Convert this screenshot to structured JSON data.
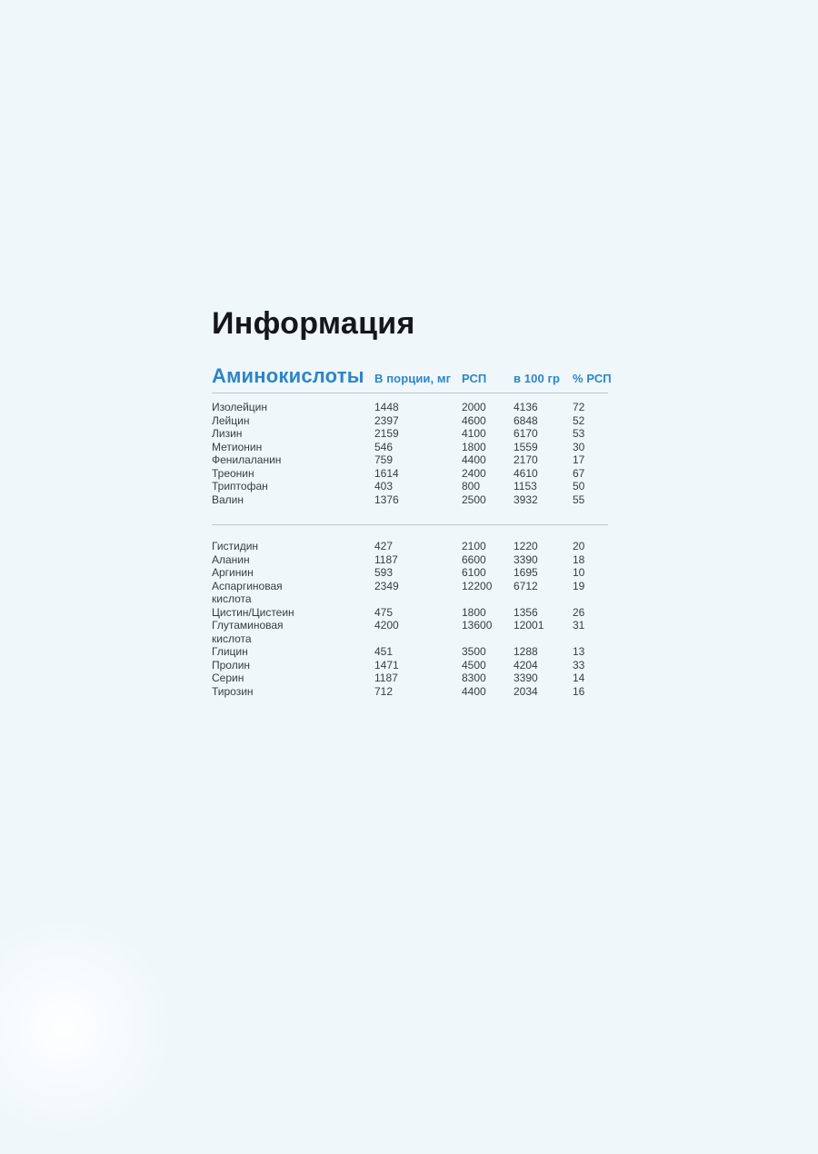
{
  "page": {
    "title": "Информация"
  },
  "table": {
    "section_title": "Аминокислоты",
    "columns": [
      "В порции, мг",
      "РСП",
      "в 100 гр",
      "% РСП"
    ],
    "groups": [
      {
        "rows": [
          {
            "name": "Изолейцин",
            "per_serving": "1448",
            "rsp": "2000",
            "per_100g": "4136",
            "pct_rsp": "72"
          },
          {
            "name": "Лейцин",
            "per_serving": "2397",
            "rsp": "4600",
            "per_100g": "6848",
            "pct_rsp": "52"
          },
          {
            "name": "Лизин",
            "per_serving": "2159",
            "rsp": "4100",
            "per_100g": "6170",
            "pct_rsp": "53"
          },
          {
            "name": "Метионин",
            "per_serving": "546",
            "rsp": "1800",
            "per_100g": "1559",
            "pct_rsp": "30"
          },
          {
            "name": "Фенилаланин",
            "per_serving": "759",
            "rsp": "4400",
            "per_100g": "2170",
            "pct_rsp": "17"
          },
          {
            "name": "Треонин",
            "per_serving": "1614",
            "rsp": "2400",
            "per_100g": "4610",
            "pct_rsp": "67"
          },
          {
            "name": "Триптофан",
            "per_serving": "403",
            "rsp": "800",
            "per_100g": "1153",
            "pct_rsp": "50"
          },
          {
            "name": "Валин",
            "per_serving": "1376",
            "rsp": "2500",
            "per_100g": "3932",
            "pct_rsp": "55"
          }
        ]
      },
      {
        "rows": [
          {
            "name": "Гистидин",
            "per_serving": "427",
            "rsp": "2100",
            "per_100g": "1220",
            "pct_rsp": "20"
          },
          {
            "name": "Аланин",
            "per_serving": "1187",
            "rsp": "6600",
            "per_100g": "3390",
            "pct_rsp": "18"
          },
          {
            "name": "Аргинин",
            "per_serving": "593",
            "rsp": "6100",
            "per_100g": "1695",
            "pct_rsp": "10"
          },
          {
            "name": "Аспаргиновая кислота",
            "per_serving": "2349",
            "rsp": "12200",
            "per_100g": "6712",
            "pct_rsp": "19"
          },
          {
            "name": "Цистин/Цистеин",
            "per_serving": "475",
            "rsp": "1800",
            "per_100g": "1356",
            "pct_rsp": "26"
          },
          {
            "name": "Глутаминовая кислота",
            "per_serving": "4200",
            "rsp": "13600",
            "per_100g": "12001",
            "pct_rsp": "31"
          },
          {
            "name": "Глицин",
            "per_serving": "451",
            "rsp": "3500",
            "per_100g": "1288",
            "pct_rsp": "13"
          },
          {
            "name": "Пролин",
            "per_serving": "1471",
            "rsp": "4500",
            "per_100g": "4204",
            "pct_rsp": "33"
          },
          {
            "name": "Серин",
            "per_serving": "1187",
            "rsp": "8300",
            "per_100g": "3390",
            "pct_rsp": "14"
          },
          {
            "name": "Тирозин",
            "per_serving": "712",
            "rsp": "4400",
            "per_100g": "2034",
            "pct_rsp": "16"
          }
        ]
      }
    ]
  },
  "colors": {
    "background": "#eff7fb",
    "accent": "#2d86c7",
    "text": "#383c42",
    "title": "#15171b",
    "divider": "#c3c9cf"
  }
}
